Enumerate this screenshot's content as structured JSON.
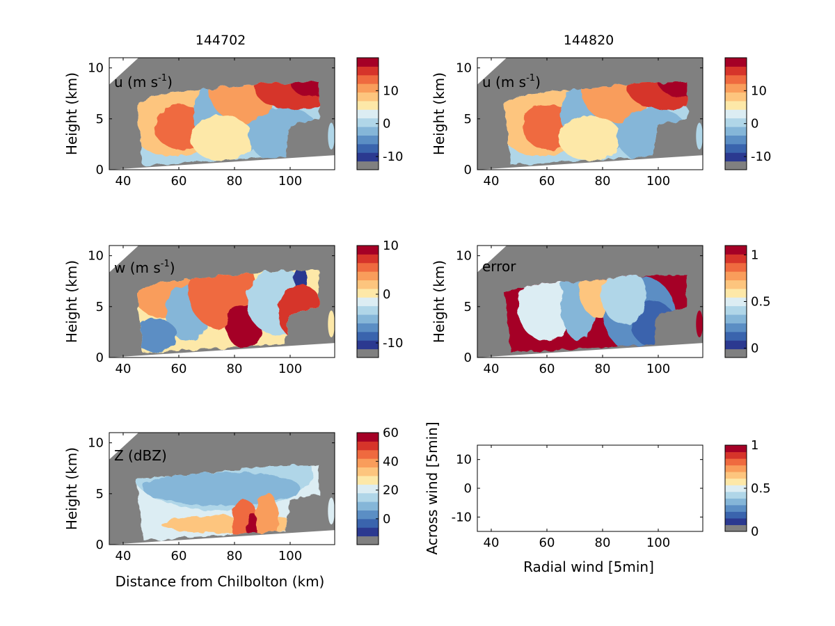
{
  "colors": {
    "background": "#ffffff",
    "masked": "#808080",
    "axes": "#000000",
    "scale": [
      "#2b3990",
      "#3a64ad",
      "#5b8ec4",
      "#85b6d8",
      "#b0d6e8",
      "#dcedf3",
      "#fde8a8",
      "#fdc57e",
      "#f99d5b",
      "#ef6a3f",
      "#d6342a",
      "#a50026"
    ]
  },
  "figure": {
    "column_titles": [
      "144702",
      "144820"
    ]
  },
  "chart_data": [
    {
      "type": "heatmap",
      "id": "u1",
      "panel_label": "u (m s",
      "panel_label_sup": "-1",
      "panel_label_tail": ")",
      "ylabel": "Height (km)",
      "xlabel": "",
      "x_range": [
        35,
        116
      ],
      "y_range": [
        0,
        11
      ],
      "xticks": [
        "40",
        "60",
        "80",
        "100"
      ],
      "yticks": [
        "0",
        "5",
        "10"
      ],
      "colorbar": {
        "range": [
          -14,
          20
        ],
        "ticks": [
          -10,
          0,
          10
        ],
        "tick_labels": [
          "-10",
          "0",
          "10"
        ]
      }
    },
    {
      "type": "heatmap",
      "id": "u2",
      "panel_label": "u (m s",
      "panel_label_sup": "-1",
      "panel_label_tail": ")",
      "ylabel": "Height (km)",
      "xlabel": "",
      "x_range": [
        35,
        116
      ],
      "y_range": [
        0,
        11
      ],
      "xticks": [
        "40",
        "60",
        "80",
        "100"
      ],
      "yticks": [
        "0",
        "5",
        "10"
      ],
      "colorbar": {
        "range": [
          -14,
          20
        ],
        "ticks": [
          -10,
          0,
          10
        ],
        "tick_labels": [
          "-10",
          "0",
          "10"
        ]
      }
    },
    {
      "type": "heatmap",
      "id": "w",
      "panel_label": "w (m s",
      "panel_label_sup": "-1",
      "panel_label_tail": ")",
      "ylabel": "Height (km)",
      "xlabel": "",
      "x_range": [
        35,
        116
      ],
      "y_range": [
        0,
        11
      ],
      "xticks": [
        "40",
        "60",
        "80",
        "100"
      ],
      "yticks": [
        "0",
        "5",
        "10"
      ],
      "colorbar": {
        "range": [
          -13,
          10
        ],
        "ticks": [
          -10,
          0,
          10
        ],
        "tick_labels": [
          "-10",
          "0",
          "10"
        ]
      }
    },
    {
      "type": "heatmap",
      "id": "error",
      "panel_label": "error",
      "panel_label_sup": "",
      "panel_label_tail": "",
      "ylabel": "Height (km)",
      "xlabel": "",
      "x_range": [
        35,
        116
      ],
      "y_range": [
        0,
        11
      ],
      "xticks": [
        "40",
        "60",
        "80",
        "100"
      ],
      "yticks": [
        "0",
        "5",
        "10"
      ],
      "colorbar": {
        "range": [
          -0.1,
          1.1
        ],
        "ticks": [
          0,
          0.5,
          1
        ],
        "tick_labels": [
          "0",
          "0.5",
          "1"
        ]
      }
    },
    {
      "type": "heatmap",
      "id": "Z",
      "panel_label": "Z (dBZ)",
      "panel_label_sup": "",
      "panel_label_tail": "",
      "ylabel": "Height (km)",
      "xlabel": "Distance from Chilbolton (km)",
      "x_range": [
        35,
        116
      ],
      "y_range": [
        0,
        11
      ],
      "xticks": [
        "40",
        "60",
        "80",
        "100"
      ],
      "yticks": [
        "0",
        "5",
        "10"
      ],
      "colorbar": {
        "range": [
          -18,
          60
        ],
        "ticks": [
          0,
          20,
          40,
          60
        ],
        "tick_labels": [
          "0",
          "20",
          "40",
          "60"
        ]
      }
    },
    {
      "type": "scatter",
      "id": "wind",
      "panel_label": "",
      "panel_label_sup": "",
      "panel_label_tail": "",
      "ylabel": "Across wind [5min]",
      "xlabel": "Radial wind [5min]",
      "x_range": [
        35,
        116
      ],
      "y_range": [
        -15,
        15
      ],
      "xticks": [
        "40",
        "60",
        "80",
        "100"
      ],
      "yticks": [
        "-10",
        "0",
        "10"
      ],
      "points": [],
      "colorbar": {
        "range": [
          0,
          1
        ],
        "ticks": [
          0,
          0.5,
          1
        ],
        "tick_labels": [
          "0",
          "0.5",
          "1"
        ]
      }
    }
  ]
}
